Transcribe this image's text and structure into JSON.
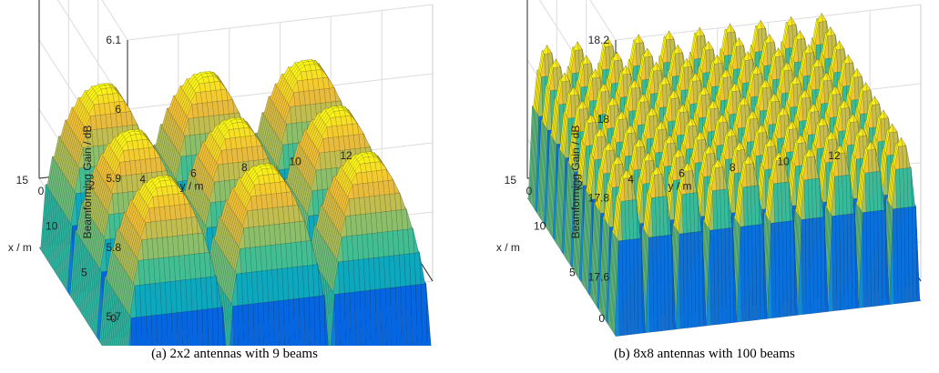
{
  "chart_data": [
    {
      "type": "surface",
      "title": "",
      "caption": "(a) 2x2 antennas with 9 beams",
      "xlabel": "x / m",
      "ylabel": "y / m",
      "zlabel": "Beamforming Gain / dB",
      "xlim": [
        0,
        15
      ],
      "ylim": [
        0,
        12
      ],
      "zlim": [
        5.7,
        6.1
      ],
      "xticks": [
        "0",
        "5",
        "10",
        "15"
      ],
      "yticks": [
        "0",
        "2",
        "4",
        "6",
        "8",
        "10",
        "12"
      ],
      "zticks": [
        "5.7",
        "5.8",
        "5.9",
        "6",
        "6.1"
      ],
      "grid": true,
      "colormap": "parula",
      "beams": 9,
      "antennas": "2x2",
      "surface": {
        "x_extent": [
          0,
          15
        ],
        "y_extent": [
          0,
          12
        ],
        "lobes_x": 3,
        "lobes_y": 3,
        "peak_dB": 5.86,
        "min_dB": 5.6
      }
    },
    {
      "type": "surface",
      "title": "",
      "caption": "(b) 8x8 antennas with 100 beams",
      "xlabel": "x / m",
      "ylabel": "y / m",
      "zlabel": "Beamforming Gain / dB",
      "xlim": [
        0,
        15
      ],
      "ylim": [
        0,
        12
      ],
      "zlim": [
        17.5,
        18.2
      ],
      "xticks": [
        "0",
        "5",
        "10",
        "15"
      ],
      "yticks": [
        "0",
        "2",
        "4",
        "6",
        "8",
        "10",
        "12"
      ],
      "zticks": [
        "17.6",
        "17.8",
        "18",
        "18.2"
      ],
      "grid": true,
      "colormap": "parula",
      "beams": 100,
      "antennas": "8x8",
      "surface": {
        "x_extent": [
          0,
          15
        ],
        "y_extent": [
          0,
          12
        ],
        "lobes_x": 10,
        "lobes_y": 10,
        "peak_dB": 17.85,
        "min_dB": 17.45
      }
    }
  ]
}
